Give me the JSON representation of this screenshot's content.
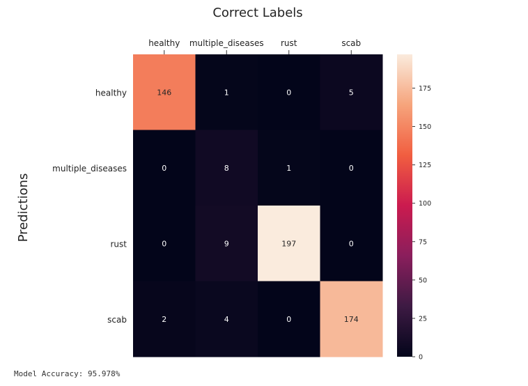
{
  "chart_data": {
    "type": "heatmap",
    "title": "Correct Labels",
    "xlabel": "Correct Labels",
    "ylabel": "Predictions",
    "x_categories": [
      "healthy",
      "multiple_diseases",
      "rust",
      "scab"
    ],
    "y_categories": [
      "healthy",
      "multiple_diseases",
      "rust",
      "scab"
    ],
    "values": [
      [
        146,
        1,
        0,
        5
      ],
      [
        0,
        8,
        1,
        0
      ],
      [
        0,
        9,
        197,
        0
      ],
      [
        2,
        4,
        0,
        174
      ]
    ],
    "colorbar": {
      "vmin": 0,
      "vmax": 197,
      "ticks": [
        0,
        25,
        50,
        75,
        100,
        125,
        150,
        175
      ]
    },
    "colormap": "rocket",
    "colormap_stops": [
      "#03051a",
      "#3d1a43",
      "#8a1e5c",
      "#cb1b4f",
      "#f15e40",
      "#f6a47c",
      "#faebdd"
    ]
  },
  "footer": {
    "accuracy_text": "Model Accuracy: 95.978%"
  }
}
